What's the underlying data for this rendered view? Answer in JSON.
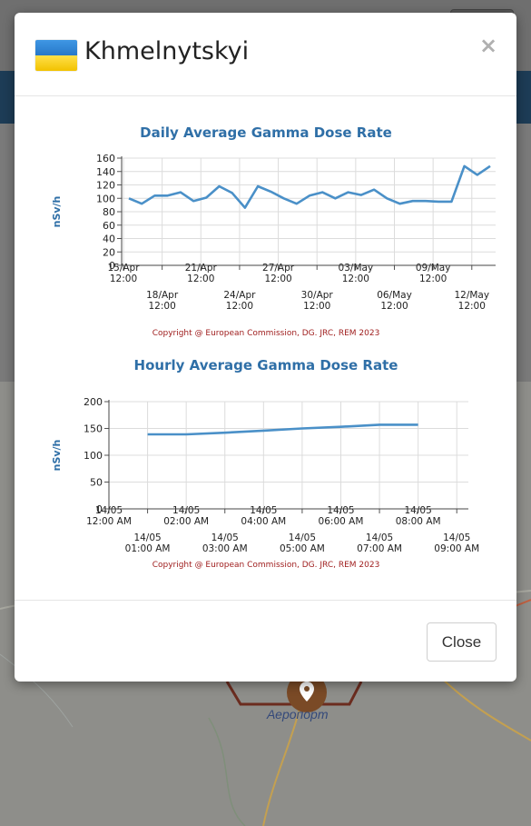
{
  "modal": {
    "title": "Khmelnytskyi",
    "close_label": "Close",
    "close_x": "×",
    "flag": {
      "name": "ukraine-flag",
      "colors": [
        "#2778c9",
        "#f2c200"
      ]
    }
  },
  "map": {
    "place_label": "Аеропорт"
  },
  "copyright": "Copyright @ European Commission, DG. JRC, REM 2023",
  "chart_data": [
    {
      "type": "line",
      "title": "Daily Average Gamma Dose Rate",
      "ylabel": "nSv/h",
      "ylim": [
        0,
        160
      ],
      "yticks": [
        0,
        20,
        40,
        60,
        80,
        100,
        120,
        140,
        160
      ],
      "grid": true,
      "color": "#4a90c8",
      "x_ticks_upper": [
        "15/Apr 12:00",
        "21/Apr 12:00",
        "27/Apr 12:00",
        "03/May 12:00",
        "09/May 12:00"
      ],
      "x_ticks_lower": [
        "18/Apr 12:00",
        "24/Apr 12:00",
        "30/Apr 12:00",
        "06/May 12:00",
        "12/May 12:00"
      ],
      "series": [
        {
          "x": [
            "15/Apr",
            "16/Apr",
            "17/Apr",
            "18/Apr",
            "19/Apr",
            "20/Apr",
            "21/Apr",
            "22/Apr",
            "23/Apr",
            "24/Apr",
            "25/Apr",
            "26/Apr",
            "27/Apr",
            "28/Apr",
            "29/Apr",
            "30/Apr",
            "01/May",
            "02/May",
            "03/May",
            "04/May",
            "05/May",
            "06/May",
            "07/May",
            "08/May",
            "09/May",
            "10/May",
            "11/May",
            "12/May",
            "13/May"
          ],
          "values": [
            100,
            92,
            104,
            104,
            109,
            96,
            101,
            118,
            108,
            86,
            118,
            110,
            100,
            92,
            104,
            109,
            100,
            109,
            105,
            113,
            100,
            92,
            96,
            96,
            95,
            95,
            148,
            135,
            148
          ]
        }
      ]
    },
    {
      "type": "line",
      "title": "Hourly Average Gamma Dose Rate",
      "ylabel": "nSv/h",
      "ylim": [
        0,
        200
      ],
      "yticks": [
        0,
        50,
        100,
        150,
        200
      ],
      "grid": true,
      "color": "#4a90c8",
      "x_ticks_upper": [
        "14/05 12:00 AM",
        "14/05 02:00 AM",
        "14/05 04:00 AM",
        "14/05 06:00 AM",
        "14/05 08:00 AM"
      ],
      "x_ticks_lower": [
        "14/05 01:00 AM",
        "14/05 03:00 AM",
        "14/05 05:00 AM",
        "14/05 07:00 AM",
        "14/05 09:00 AM"
      ],
      "series": [
        {
          "x": [
            "01:00 AM",
            "02:00 AM",
            "03:00 AM",
            "04:00 AM",
            "05:00 AM",
            "06:00 AM",
            "07:00 AM",
            "08:00 AM"
          ],
          "values": [
            139,
            139,
            142,
            146,
            150,
            153,
            157,
            157
          ]
        }
      ]
    }
  ]
}
